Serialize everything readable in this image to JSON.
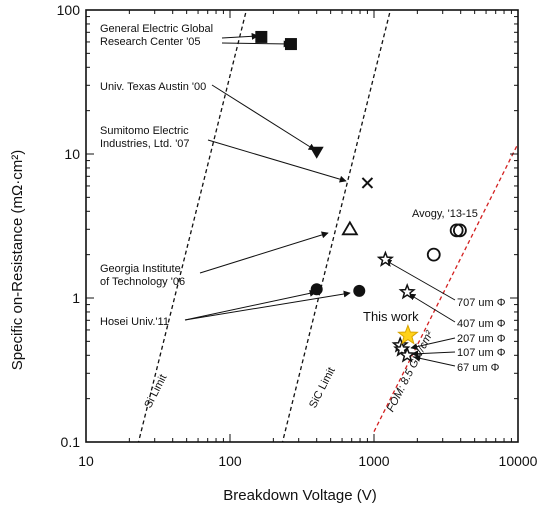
{
  "chart_data": {
    "type": "scatter",
    "title": "",
    "xlabel": "Breakdown Voltage (V)",
    "ylabel": "Specific on-Resistance (mΩ·cm²)",
    "x_scale": "log",
    "y_scale": "log",
    "xlim": [
      10,
      10000
    ],
    "ylim": [
      0.1,
      100
    ],
    "grid": false,
    "x_ticks": [
      {
        "value": 10,
        "label": "10"
      },
      {
        "value": 100,
        "label": "100"
      },
      {
        "value": 1000,
        "label": "1000"
      },
      {
        "value": 10000,
        "label": "10000"
      }
    ],
    "y_ticks": [
      {
        "value": 0.1,
        "label": "0.1"
      },
      {
        "value": 1,
        "label": "1"
      },
      {
        "value": 10,
        "label": "10"
      },
      {
        "value": 100,
        "label": "100"
      }
    ],
    "series": [
      {
        "name": "General Electric Global Research Center '05",
        "marker": "square-filled",
        "points": [
          {
            "x": 165,
            "y": 65
          },
          {
            "x": 265,
            "y": 58
          }
        ]
      },
      {
        "name": "Univ. Texas Austin '00",
        "marker": "triangle-down-filled",
        "points": [
          {
            "x": 400,
            "y": 10.2
          }
        ]
      },
      {
        "name": "Sumitomo Electric Industries, Ltd. '07",
        "marker": "x",
        "points": [
          {
            "x": 900,
            "y": 6.3
          }
        ]
      },
      {
        "name": "Georgia Institute of Technology '06",
        "marker": "triangle-up-open",
        "points": [
          {
            "x": 680,
            "y": 3.0
          }
        ]
      },
      {
        "name": "Hosei Univ.'11",
        "marker": "circle-filled",
        "points": [
          {
            "x": 400,
            "y": 1.15
          },
          {
            "x": 790,
            "y": 1.12
          }
        ]
      },
      {
        "name": "Avogy, '13-15",
        "marker": "circle-open",
        "points": [
          {
            "x": 2600,
            "y": 2.0
          },
          {
            "x": 3750,
            "y": 2.95
          },
          {
            "x": 3950,
            "y": 2.95
          }
        ]
      },
      {
        "name": "This work",
        "marker": "star-open",
        "points": [
          {
            "x": 1200,
            "y": 1.85,
            "label": "707 um Φ"
          },
          {
            "x": 1700,
            "y": 1.1,
            "label": "407 um Φ"
          },
          {
            "x": 1520,
            "y": 0.47,
            "label": "207 um Φ"
          },
          {
            "x": 1560,
            "y": 0.44,
            "label": "107 um Φ"
          },
          {
            "x": 1700,
            "y": 0.4,
            "label": "67 um Φ"
          }
        ]
      },
      {
        "name": "This work",
        "marker": "star-filled-gold",
        "points": [
          {
            "x": 1720,
            "y": 0.55
          }
        ]
      }
    ],
    "limit_lines": [
      {
        "label": "Si Limit",
        "color": "#111111",
        "points": [
          [
            20,
            0.0556
          ],
          [
            130,
            100
          ]
        ]
      },
      {
        "label": "SiC Limit",
        "color": "#111111",
        "points": [
          [
            200,
            0.0556
          ],
          [
            1300,
            100
          ]
        ]
      },
      {
        "label": "FOM: 8.5 GW/cm²",
        "color": "#d32020",
        "points": [
          [
            1000,
            0.118
          ],
          [
            10000,
            11.8
          ]
        ]
      }
    ],
    "annotations": [
      {
        "text_lines": [
          "General Electric Global",
          "Research Center '05"
        ]
      },
      {
        "text_lines": [
          "Univ. Texas Austin '00"
        ]
      },
      {
        "text_lines": [
          "Sumitomo Electric",
          "Industries, Ltd. '07"
        ]
      },
      {
        "text_lines": [
          "Georgia Institute",
          "of Technology '06"
        ]
      },
      {
        "text_lines": [
          "Hosei Univ.'11"
        ]
      },
      {
        "text_lines": [
          "Avogy, '13-15"
        ]
      },
      {
        "text_lines": [
          "This work"
        ],
        "color": "#f5a000"
      },
      {
        "text_lines": [
          "707 um Φ"
        ]
      },
      {
        "text_lines": [
          "407 um Φ"
        ]
      },
      {
        "text_lines": [
          "207 um Φ"
        ]
      },
      {
        "text_lines": [
          "107 um Φ"
        ]
      },
      {
        "text_lines": [
          "67  um Φ"
        ]
      }
    ],
    "colors": {
      "axis": "#111111",
      "marker": "#111111",
      "fom_line": "#d32020",
      "highlight_star": "#ffd21a",
      "highlight_text": "#f5a000"
    }
  }
}
